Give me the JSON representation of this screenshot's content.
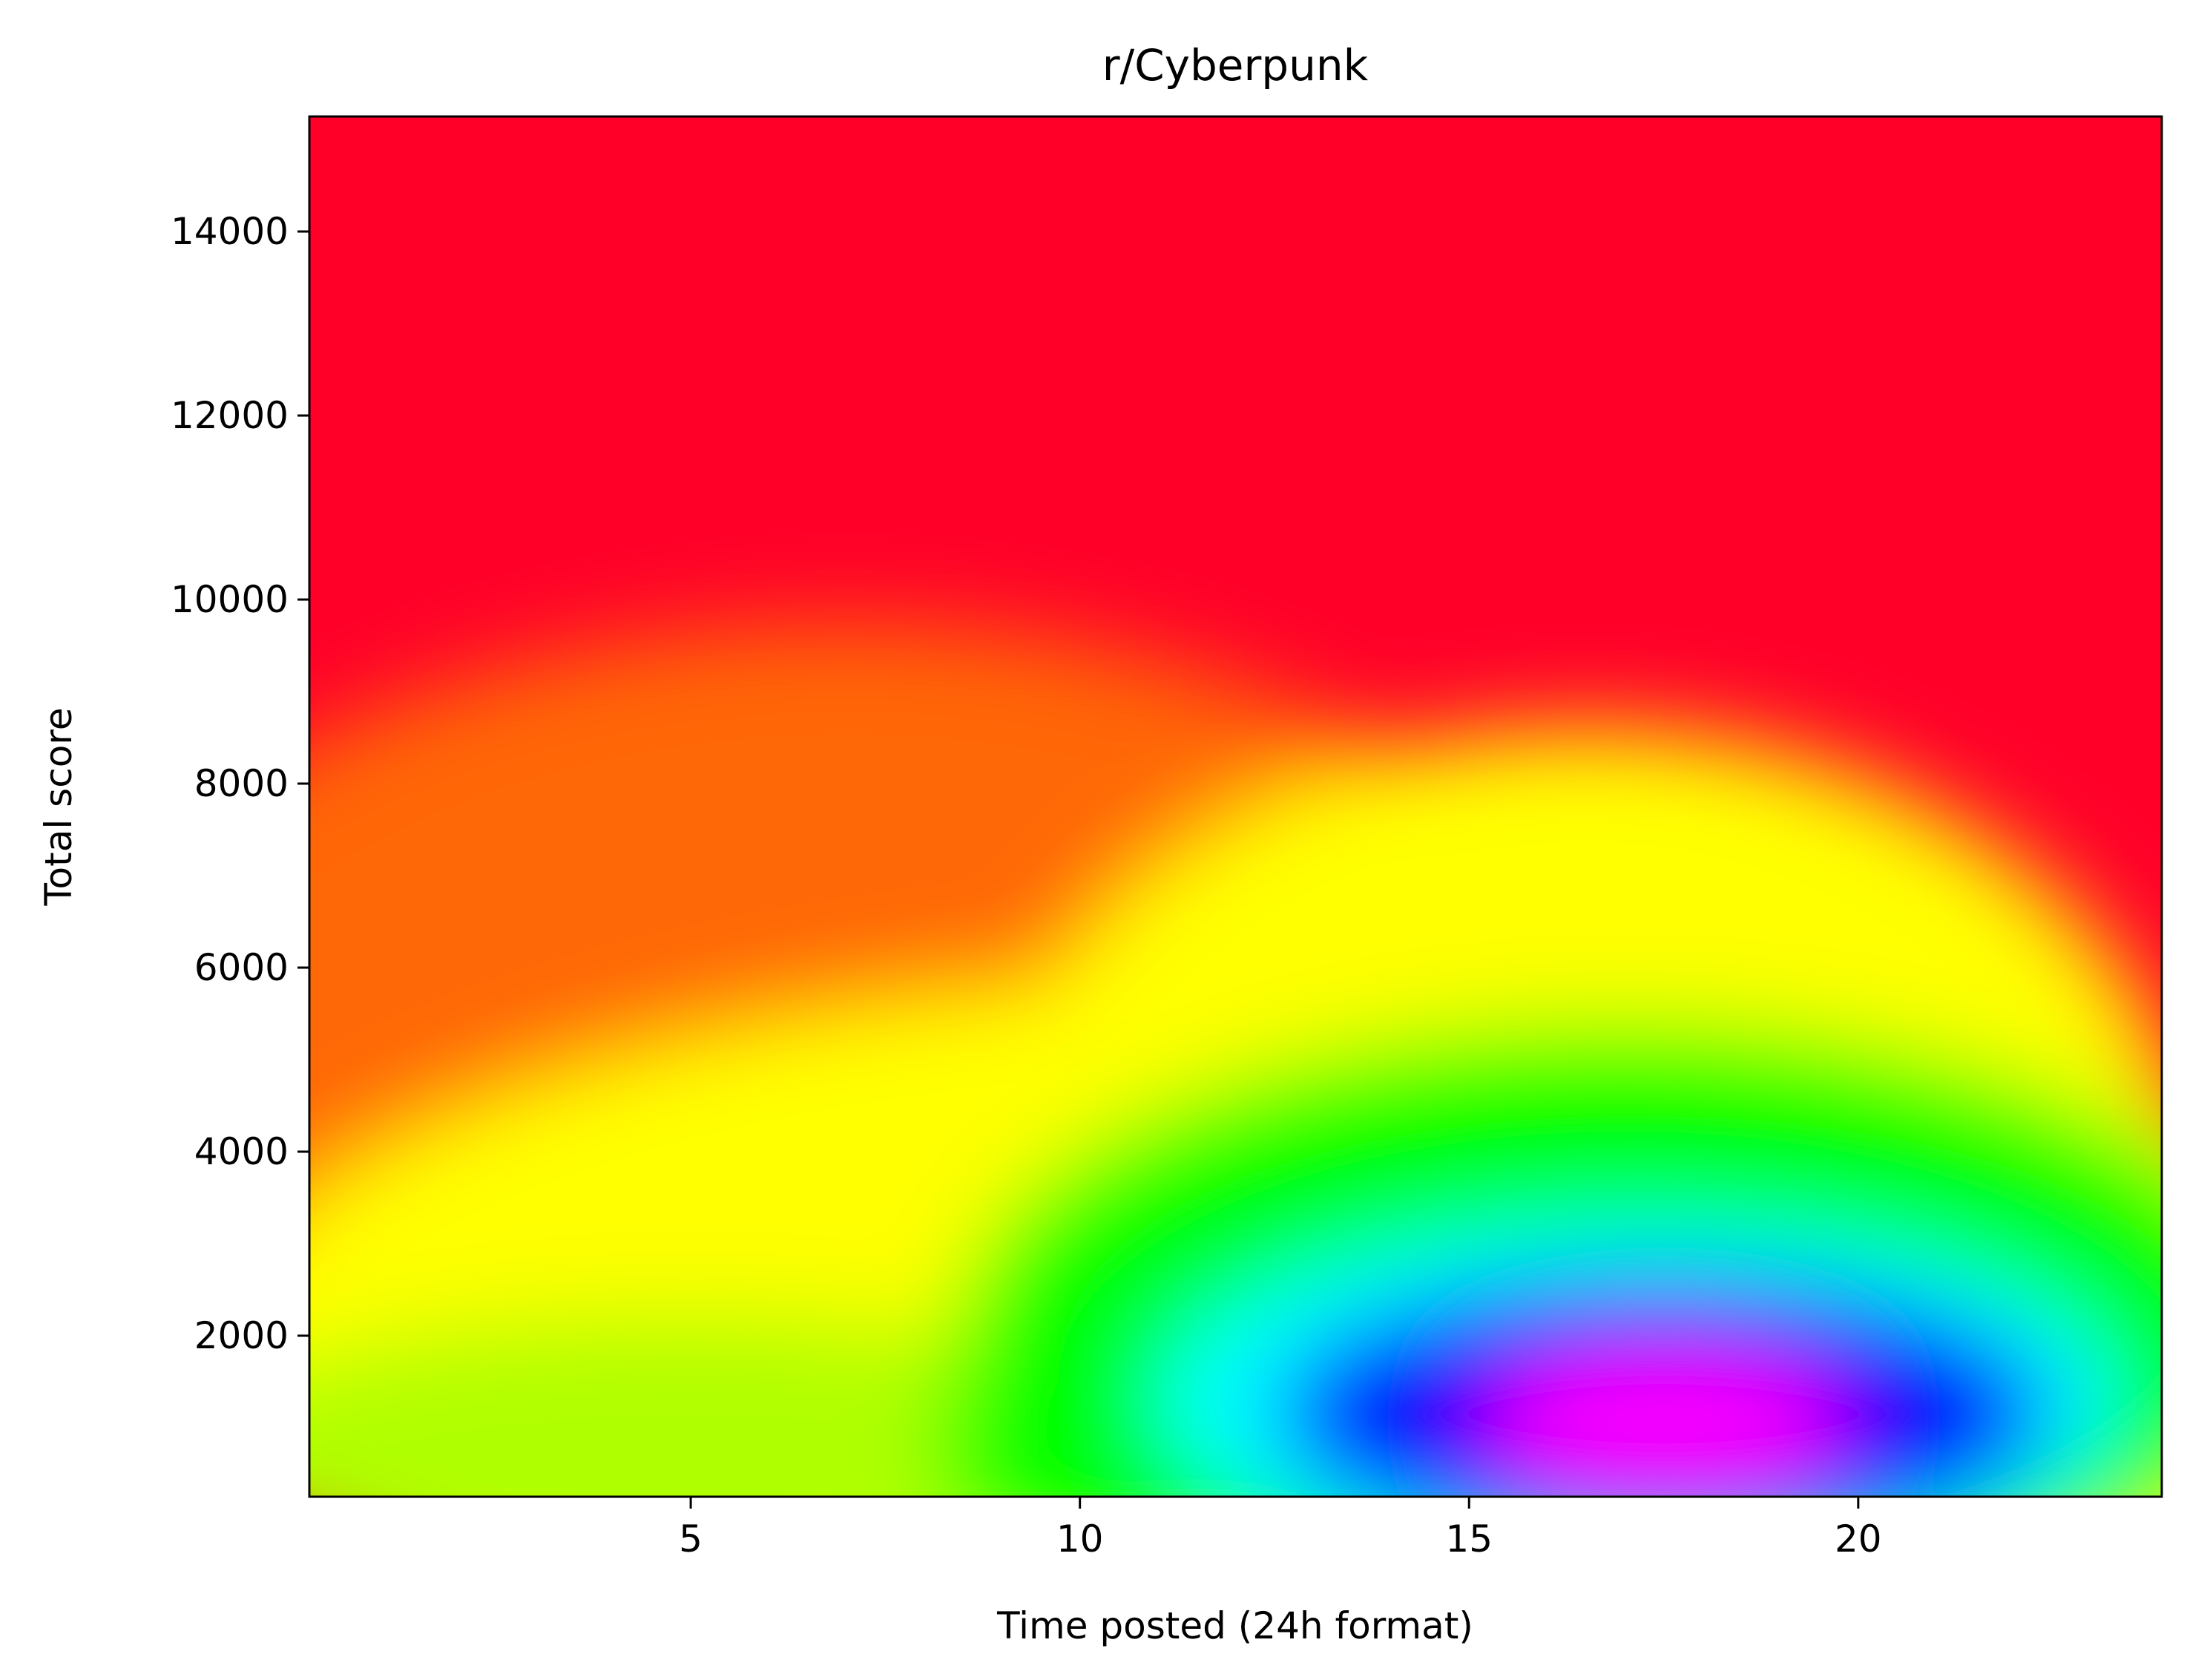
{
  "chart_data": {
    "type": "heatmap",
    "title": "r/Cyberpunk",
    "xlabel": "Time posted (24h format)",
    "ylabel": "Total score",
    "xlim": [
      0.1,
      23.9
    ],
    "ylim": [
      250,
      15250
    ],
    "xticks": [
      5,
      10,
      15,
      20
    ],
    "yticks": [
      2000,
      4000,
      6000,
      8000,
      10000,
      12000,
      14000
    ],
    "colormap": "gist_rainbow",
    "colormap_stops": [
      "#ff0029",
      "#ff0000",
      "#ff7a00",
      "#ffff00",
      "#b0ff00",
      "#00ff00",
      "#00ffff",
      "#0000ff",
      "#ff00ff"
    ],
    "grid": false,
    "legend": "none",
    "density_peaks": [
      {
        "x": 17.5,
        "y": 1000,
        "level": 1.0
      },
      {
        "x": 3.5,
        "y": 800,
        "level": 0.55
      },
      {
        "x": 20.5,
        "y": 600,
        "level": 0.7
      },
      {
        "x": 11.5,
        "y": 1500,
        "level": 0.6
      },
      {
        "x": 14.5,
        "y": 4000,
        "level": 0.5
      }
    ]
  }
}
